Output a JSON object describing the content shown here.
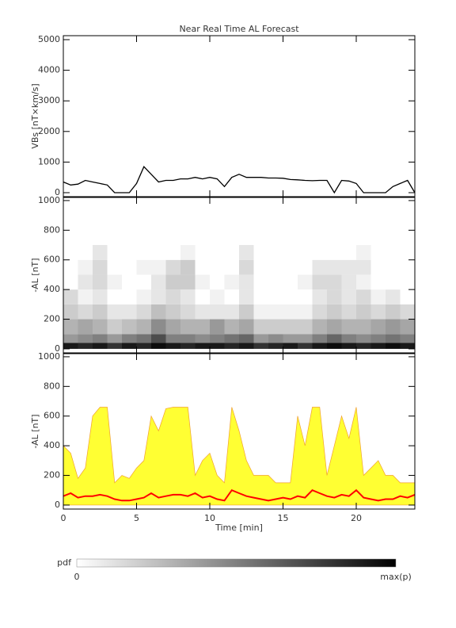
{
  "chart_data": [
    {
      "type": "line",
      "title": "Near Real Time AL Forecast",
      "ylabel": "VBs [nT×km/s]",
      "x": [
        0,
        0.5,
        1,
        1.5,
        2,
        2.5,
        3,
        3.5,
        4,
        4.5,
        5,
        5.5,
        6,
        6.5,
        7,
        7.5,
        8,
        8.5,
        9,
        9.5,
        10,
        10.5,
        11,
        11.5,
        12,
        12.5,
        13,
        13.5,
        14,
        14.5,
        15,
        15.5,
        16,
        16.5,
        17,
        17.5,
        18,
        18.5,
        19,
        19.5,
        20,
        20.5,
        21,
        21.5,
        22,
        22.5,
        23,
        23.5,
        24
      ],
      "values": [
        350,
        250,
        280,
        400,
        350,
        300,
        250,
        0,
        0,
        0,
        300,
        850,
        600,
        350,
        400,
        400,
        450,
        450,
        500,
        450,
        500,
        450,
        200,
        500,
        600,
        500,
        500,
        500,
        480,
        480,
        470,
        430,
        420,
        400,
        390,
        400,
        400,
        0,
        400,
        380,
        300,
        0,
        0,
        0,
        0,
        200,
        300,
        400,
        0
      ],
      "color": "#000000",
      "xlim": [
        0,
        24
      ],
      "xticks": [
        0,
        5,
        10,
        15,
        20
      ],
      "ylim": [
        -130,
        5130
      ],
      "yticks": [
        0,
        1000,
        2000,
        3000,
        4000,
        5000
      ]
    },
    {
      "type": "heatmap",
      "ylabel": "-AL [nT]",
      "xbins": [
        0,
        1,
        2,
        3,
        4,
        5,
        6,
        7,
        8,
        9,
        10,
        11,
        12,
        13,
        14,
        15,
        16,
        17,
        18,
        19,
        20,
        21,
        22,
        23,
        24
      ],
      "ybins": [
        0,
        40,
        100,
        200,
        300,
        400,
        500,
        600,
        700
      ],
      "z": [
        [
          0.9,
          0.85,
          0.9,
          0.8,
          0.9,
          0.85,
          0.95,
          0.9,
          0.85,
          0.9,
          0.9,
          0.85,
          0.9,
          0.8,
          0.85,
          0.9,
          0.8,
          0.9,
          0.95,
          0.9,
          0.85,
          0.9,
          0.95,
          0.9
        ],
        [
          0.4,
          0.45,
          0.5,
          0.4,
          0.5,
          0.55,
          0.7,
          0.5,
          0.5,
          0.45,
          0.5,
          0.55,
          0.6,
          0.4,
          0.45,
          0.4,
          0.4,
          0.5,
          0.6,
          0.5,
          0.45,
          0.5,
          0.55,
          0.5
        ],
        [
          0.3,
          0.35,
          0.3,
          0.2,
          0.25,
          0.3,
          0.45,
          0.35,
          0.3,
          0.3,
          0.4,
          0.3,
          0.35,
          0.2,
          0.2,
          0.2,
          0.2,
          0.3,
          0.35,
          0.3,
          0.3,
          0.35,
          0.4,
          0.35
        ],
        [
          0.2,
          0.15,
          0.2,
          0.1,
          0.1,
          0.15,
          0.25,
          0.2,
          0.15,
          0.1,
          0.1,
          0.1,
          0.2,
          0.05,
          0.05,
          0.05,
          0.05,
          0.15,
          0.2,
          0.15,
          0.2,
          0.15,
          0.2,
          0.15
        ],
        [
          0.15,
          0.05,
          0.1,
          0,
          0,
          0.05,
          0.1,
          0.15,
          0.1,
          0,
          0.05,
          0,
          0.1,
          0,
          0,
          0,
          0,
          0.1,
          0.15,
          0.1,
          0.15,
          0.05,
          0.1,
          0
        ],
        [
          0,
          0.1,
          0.15,
          0.05,
          0,
          0,
          0.1,
          0.2,
          0.2,
          0.05,
          0,
          0.05,
          0.1,
          0,
          0,
          0,
          0.05,
          0.15,
          0.15,
          0.1,
          0.05,
          0,
          0,
          0
        ],
        [
          0,
          0.05,
          0.15,
          0,
          0,
          0.05,
          0.05,
          0.15,
          0.2,
          0,
          0,
          0,
          0.15,
          0,
          0,
          0,
          0,
          0.1,
          0.1,
          0.1,
          0.1,
          0,
          0,
          0
        ],
        [
          0,
          0,
          0.1,
          0,
          0,
          0,
          0,
          0,
          0.05,
          0,
          0,
          0,
          0.1,
          0,
          0,
          0,
          0,
          0,
          0,
          0,
          0.05,
          0,
          0,
          0
        ]
      ],
      "colorbar": {
        "label": "pdf",
        "min_label": "0",
        "max_label": "max(p)"
      },
      "xlim": [
        0,
        24
      ],
      "xticks": [
        0,
        5,
        10,
        15,
        20
      ],
      "ylim": [
        -27,
        1021
      ],
      "yticks": [
        0,
        200,
        400,
        600,
        800,
        1000
      ]
    },
    {
      "type": "area",
      "ylabel": "-AL [nT]",
      "xlabel": "Time [min]",
      "x": [
        0,
        0.5,
        1,
        1.5,
        2,
        2.5,
        3,
        3.5,
        4,
        4.5,
        5,
        5.5,
        6,
        6.5,
        7,
        7.5,
        8,
        8.5,
        9,
        9.5,
        10,
        10.5,
        11,
        11.5,
        12,
        12.5,
        13,
        13.5,
        14,
        14.5,
        15,
        15.5,
        16,
        16.5,
        17,
        17.5,
        18,
        18.5,
        19,
        19.5,
        20,
        20.5,
        21,
        21.5,
        22,
        22.5,
        23,
        23.5,
        24
      ],
      "series": [
        {
          "color": "#ffff33",
          "edge": "#f0a030",
          "fill": true,
          "values": [
            400,
            350,
            180,
            250,
            600,
            660,
            660,
            150,
            200,
            180,
            250,
            300,
            600,
            500,
            650,
            660,
            660,
            660,
            200,
            300,
            350,
            200,
            150,
            660,
            500,
            300,
            200,
            200,
            200,
            150,
            150,
            150,
            600,
            400,
            660,
            660,
            200,
            400,
            600,
            450,
            660,
            200,
            250,
            300,
            200,
            200,
            150,
            150,
            150
          ]
        },
        {
          "color": "#ff0000",
          "values": [
            60,
            80,
            50,
            60,
            60,
            70,
            60,
            40,
            30,
            30,
            40,
            50,
            80,
            50,
            60,
            70,
            70,
            60,
            80,
            50,
            60,
            40,
            30,
            100,
            80,
            60,
            50,
            40,
            30,
            40,
            50,
            40,
            60,
            50,
            100,
            80,
            60,
            50,
            70,
            60,
            100,
            50,
            40,
            30,
            40,
            40,
            60,
            50,
            70
          ]
        }
      ],
      "xlim": [
        0,
        24
      ],
      "xticks": [
        0,
        5,
        10,
        15,
        20
      ],
      "ylim": [
        -27,
        1021
      ],
      "yticks": [
        0,
        200,
        400,
        600,
        800,
        1000
      ]
    }
  ]
}
